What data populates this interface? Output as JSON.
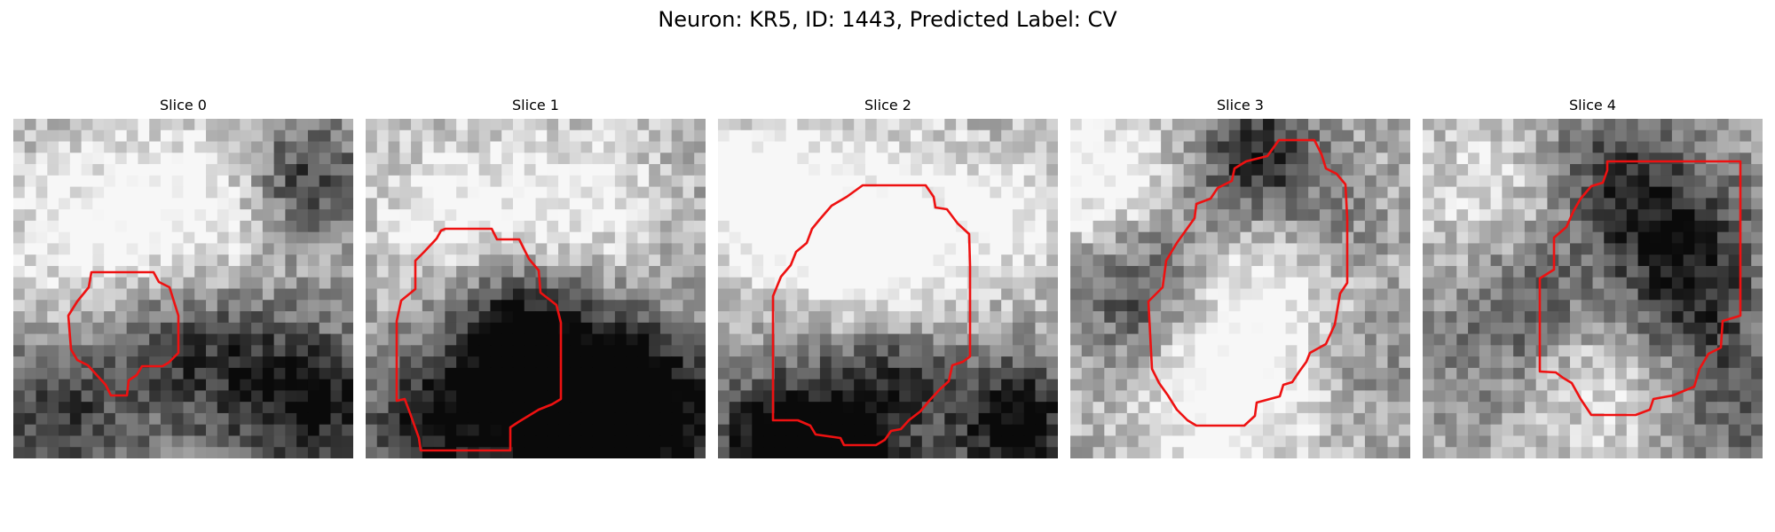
{
  "figure": {
    "title": "Neuron: KR5, ID: 1443, Predicted Label: CV"
  },
  "panels": [
    {
      "title": "Slice 0"
    },
    {
      "title": "Slice 1"
    },
    {
      "title": "Slice 2"
    },
    {
      "title": "Slice 3"
    },
    {
      "title": "Slice 4"
    }
  ],
  "colors": {
    "contour": "#ee1111",
    "colormap": "grayscale-reversed"
  }
}
